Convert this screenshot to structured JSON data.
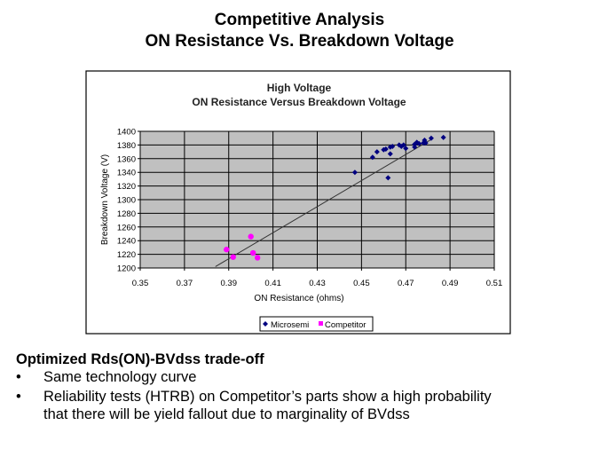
{
  "slide": {
    "title_line1": "Competitive Analysis",
    "title_line2": "ON Resistance Vs. Breakdown Voltage",
    "heading": "Optimized Rds(ON)-BVdss  trade-off",
    "bullets": [
      "Same technology curve",
      "Reliability tests (HTRB) on Competitor’s parts show a high probability",
      "that there will be yield fallout due to marginality of BVdss"
    ],
    "bullet_char": "•"
  },
  "chart_data": {
    "type": "scatter",
    "title": "High Voltage",
    "subtitle": "ON Resistance Versus Breakdown Voltage",
    "xlabel": "ON Resistance (ohms)",
    "ylabel": "Breakdown Voltage (V)",
    "xlim": [
      0.35,
      0.51
    ],
    "ylim": [
      1200,
      1400
    ],
    "xticks": [
      "0.35",
      "0.37",
      "0.39",
      "0.41",
      "0.43",
      "0.45",
      "0.47",
      "0.49",
      "0.51"
    ],
    "yticks": [
      "1200",
      "1220",
      "1240",
      "1260",
      "1280",
      "1300",
      "1320",
      "1340",
      "1360",
      "1380",
      "1400"
    ],
    "grid": true,
    "legend": "bottom",
    "series": [
      {
        "name": "Microsemi",
        "marker": "diamond",
        "color": "#000080",
        "points": [
          [
            0.447,
            1340
          ],
          [
            0.462,
            1332
          ],
          [
            0.455,
            1362
          ],
          [
            0.457,
            1370
          ],
          [
            0.46,
            1373
          ],
          [
            0.461,
            1374
          ],
          [
            0.463,
            1367
          ],
          [
            0.463,
            1377
          ],
          [
            0.464,
            1378
          ],
          [
            0.467,
            1380
          ],
          [
            0.468,
            1378
          ],
          [
            0.469,
            1380
          ],
          [
            0.47,
            1375
          ],
          [
            0.474,
            1377
          ],
          [
            0.474,
            1381
          ],
          [
            0.475,
            1384
          ],
          [
            0.476,
            1382
          ],
          [
            0.478,
            1383
          ],
          [
            0.4785,
            1387
          ],
          [
            0.479,
            1383
          ],
          [
            0.4815,
            1390
          ],
          [
            0.487,
            1391
          ]
        ]
      },
      {
        "name": "Competitor",
        "marker": "square",
        "color": "#ff00ff",
        "points": [
          [
            0.389,
            1227
          ],
          [
            0.392,
            1216
          ],
          [
            0.4,
            1246
          ],
          [
            0.401,
            1222
          ],
          [
            0.403,
            1215
          ]
        ]
      }
    ],
    "trendline": {
      "color": "#333333",
      "points": [
        [
          0.384,
          1202
        ],
        [
          0.482,
          1389
        ]
      ]
    }
  }
}
